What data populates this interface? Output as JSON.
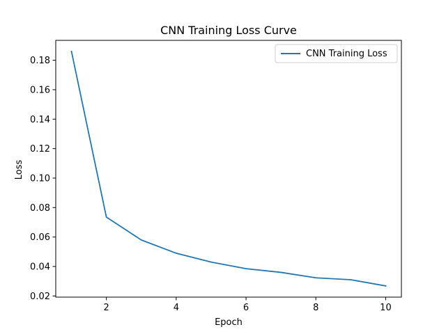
{
  "chart_data": {
    "type": "line",
    "title": "CNN Training Loss Curve",
    "xlabel": "Epoch",
    "ylabel": "Loss",
    "xlim": [
      0.55,
      10.45
    ],
    "ylim": [
      0.0192,
      0.1935
    ],
    "x_ticks": [
      2,
      4,
      6,
      8,
      10
    ],
    "x_tick_labels": [
      "2",
      "4",
      "6",
      "8",
      "10"
    ],
    "y_ticks": [
      0.02,
      0.04,
      0.06,
      0.08,
      0.1,
      0.12,
      0.14,
      0.16,
      0.18
    ],
    "y_tick_labels": [
      "0.02",
      "0.04",
      "0.06",
      "0.08",
      "0.10",
      "0.12",
      "0.14",
      "0.16",
      "0.18"
    ],
    "grid": false,
    "legend_position": "top-right",
    "series": [
      {
        "name": "CNN Training Loss",
        "color": "#1f77b4",
        "x": [
          1,
          2,
          3,
          4,
          5,
          6,
          7,
          8,
          9,
          10
        ],
        "y": [
          0.186,
          0.0735,
          0.058,
          0.049,
          0.043,
          0.0385,
          0.036,
          0.0323,
          0.031,
          0.0268
        ]
      }
    ]
  }
}
